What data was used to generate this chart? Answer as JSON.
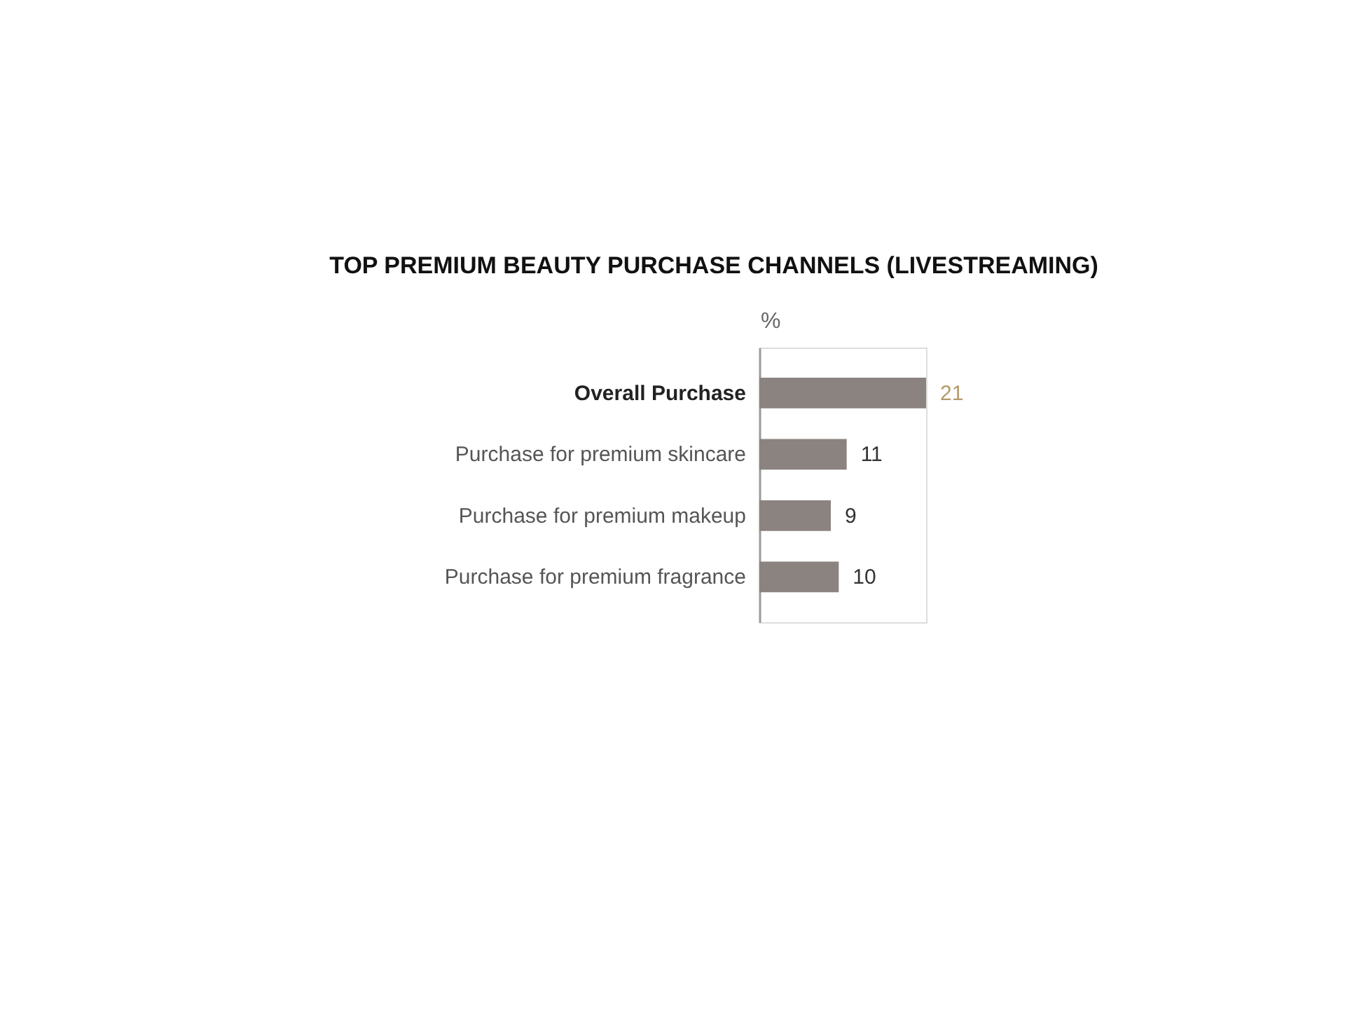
{
  "chart_data": {
    "type": "bar",
    "orientation": "horizontal",
    "title": "TOP PREMIUM BEAUTY PURCHASE CHANNELS (LIVESTREAMING)",
    "xlabel": "%",
    "categories": [
      "Overall Purchase",
      "Purchase for premium skincare",
      "Purchase for premium makeup",
      "Purchase for premium fragrance"
    ],
    "values": [
      21,
      11,
      9,
      10
    ],
    "color": "#8b8380",
    "data_labels": true
  }
}
